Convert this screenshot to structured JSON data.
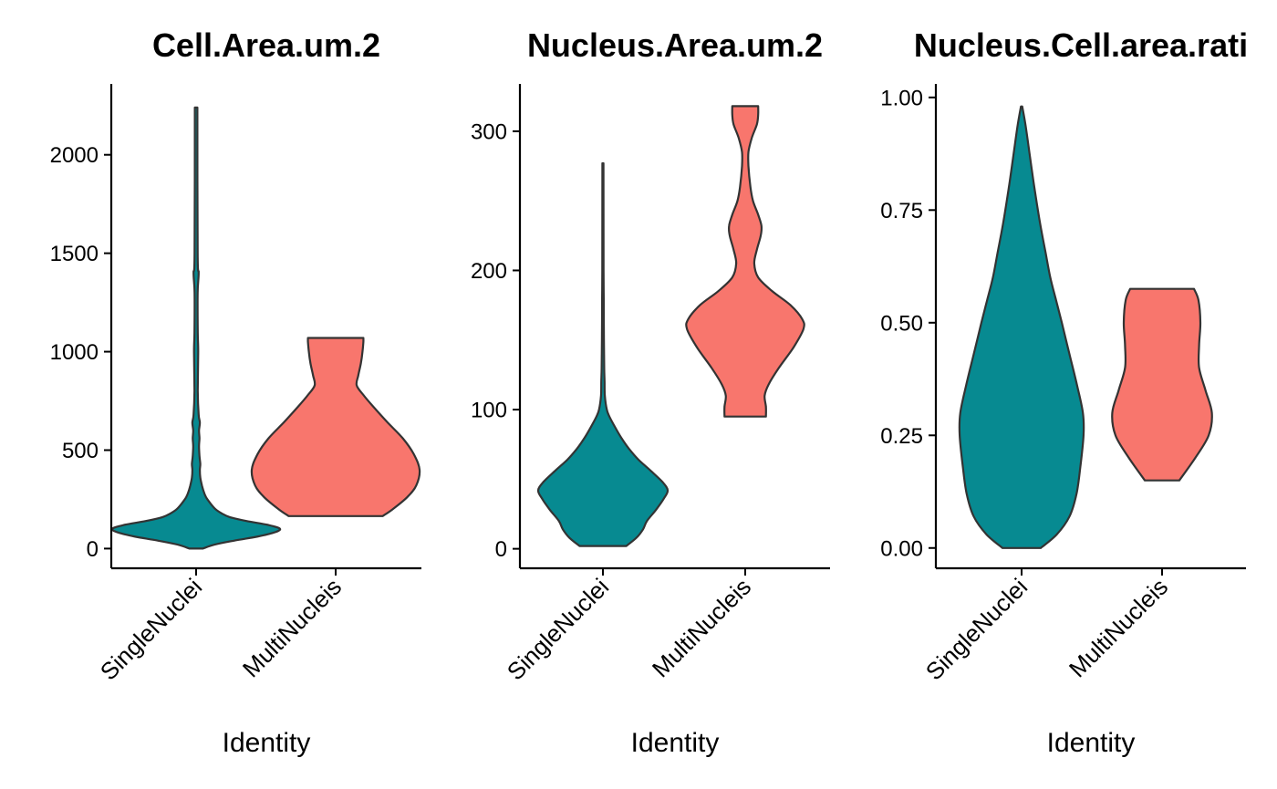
{
  "colors": {
    "SingleNuclei": "#078A91",
    "MultiNucleis": "#F8766D"
  },
  "chart_data": [
    {
      "type": "violin",
      "title": "Cell.Area.um.2",
      "xlabel": "Identity",
      "categories": [
        "SingleNuclei",
        "MultiNucleis"
      ],
      "ylim": [
        -100,
        2360
      ],
      "yticks": [
        0,
        500,
        1000,
        1500,
        2000
      ],
      "violins": [
        {
          "group": "SingleNuclei",
          "min": 0,
          "max": 2240,
          "profile": [
            [
              0,
              0.08
            ],
            [
              20,
              0.22
            ],
            [
              40,
              0.45
            ],
            [
              60,
              0.72
            ],
            [
              80,
              0.92
            ],
            [
              100,
              1.0
            ],
            [
              120,
              0.86
            ],
            [
              140,
              0.6
            ],
            [
              160,
              0.4
            ],
            [
              180,
              0.3
            ],
            [
              200,
              0.23
            ],
            [
              230,
              0.17
            ],
            [
              260,
              0.12
            ],
            [
              290,
              0.09
            ],
            [
              320,
              0.07
            ],
            [
              360,
              0.05
            ],
            [
              400,
              0.045
            ],
            [
              430,
              0.05
            ],
            [
              470,
              0.04
            ],
            [
              520,
              0.035
            ],
            [
              560,
              0.04
            ],
            [
              600,
              0.035
            ],
            [
              640,
              0.045
            ],
            [
              680,
              0.03
            ],
            [
              800,
              0.02
            ],
            [
              1000,
              0.025
            ],
            [
              1100,
              0.02
            ],
            [
              1300,
              0.018
            ],
            [
              1400,
              0.03
            ],
            [
              1500,
              0.018
            ],
            [
              2240,
              0.015
            ]
          ]
        },
        {
          "group": "MultiNucleis",
          "min": 165,
          "max": 1070,
          "profile": [
            [
              165,
              0.56
            ],
            [
              200,
              0.68
            ],
            [
              260,
              0.85
            ],
            [
              320,
              0.96
            ],
            [
              400,
              1.0
            ],
            [
              480,
              0.93
            ],
            [
              560,
              0.8
            ],
            [
              640,
              0.62
            ],
            [
              720,
              0.45
            ],
            [
              780,
              0.33
            ],
            [
              830,
              0.25
            ],
            [
              880,
              0.27
            ],
            [
              940,
              0.3
            ],
            [
              1000,
              0.32
            ],
            [
              1050,
              0.33
            ],
            [
              1070,
              0.33
            ]
          ]
        }
      ]
    },
    {
      "type": "violin",
      "title": "Nucleus.Area.um.2",
      "xlabel": "Identity",
      "categories": [
        "SingleNuclei",
        "MultiNucleis"
      ],
      "ylim": [
        -14,
        334
      ],
      "yticks": [
        0,
        100,
        200,
        300
      ],
      "violins": [
        {
          "group": "SingleNuclei",
          "min": 2,
          "max": 277,
          "profile": [
            [
              2,
              0.36
            ],
            [
              8,
              0.52
            ],
            [
              14,
              0.62
            ],
            [
              20,
              0.68
            ],
            [
              28,
              0.82
            ],
            [
              36,
              0.94
            ],
            [
              42,
              1.0
            ],
            [
              48,
              0.92
            ],
            [
              56,
              0.74
            ],
            [
              64,
              0.55
            ],
            [
              72,
              0.4
            ],
            [
              80,
              0.28
            ],
            [
              88,
              0.18
            ],
            [
              95,
              0.1
            ],
            [
              100,
              0.06
            ],
            [
              110,
              0.03
            ],
            [
              120,
              0.025
            ],
            [
              130,
              0.02
            ],
            [
              150,
              0.015
            ],
            [
              180,
              0.012
            ],
            [
              200,
              0.01
            ],
            [
              277,
              0.008
            ]
          ]
        },
        {
          "group": "MultiNucleis",
          "min": 95,
          "max": 318,
          "profile": [
            [
              95,
              0.32
            ],
            [
              102,
              0.32
            ],
            [
              110,
              0.3
            ],
            [
              118,
              0.36
            ],
            [
              130,
              0.52
            ],
            [
              145,
              0.75
            ],
            [
              158,
              0.9
            ],
            [
              165,
              0.88
            ],
            [
              175,
              0.7
            ],
            [
              185,
              0.42
            ],
            [
              195,
              0.2
            ],
            [
              205,
              0.14
            ],
            [
              215,
              0.18
            ],
            [
              225,
              0.24
            ],
            [
              232,
              0.25
            ],
            [
              240,
              0.2
            ],
            [
              250,
              0.12
            ],
            [
              260,
              0.08
            ],
            [
              275,
              0.05
            ],
            [
              285,
              0.05
            ],
            [
              295,
              0.1
            ],
            [
              305,
              0.18
            ],
            [
              312,
              0.2
            ],
            [
              318,
              0.2
            ]
          ]
        }
      ]
    },
    {
      "type": "violin",
      "title": "Nucleus.Cell.area.rati",
      "xlabel": "Identity",
      "categories": [
        "SingleNuclei",
        "MultiNucleis"
      ],
      "ylim": [
        -0.045,
        1.03
      ],
      "yticks": [
        0.0,
        0.25,
        0.5,
        0.75,
        1.0
      ],
      "tick_decimals": 2,
      "violins": [
        {
          "group": "SingleNuclei",
          "min": 0.0,
          "max": 0.98,
          "profile": [
            [
              0.0,
              0.3
            ],
            [
              0.03,
              0.55
            ],
            [
              0.07,
              0.75
            ],
            [
              0.12,
              0.86
            ],
            [
              0.18,
              0.92
            ],
            [
              0.25,
              0.97
            ],
            [
              0.3,
              0.96
            ],
            [
              0.36,
              0.87
            ],
            [
              0.43,
              0.75
            ],
            [
              0.5,
              0.63
            ],
            [
              0.55,
              0.54
            ],
            [
              0.6,
              0.45
            ],
            [
              0.66,
              0.37
            ],
            [
              0.72,
              0.29
            ],
            [
              0.8,
              0.2
            ],
            [
              0.88,
              0.12
            ],
            [
              0.94,
              0.06
            ],
            [
              0.98,
              0.01
            ]
          ]
        },
        {
          "group": "MultiNucleis",
          "min": 0.15,
          "max": 0.575,
          "profile": [
            [
              0.15,
              0.27
            ],
            [
              0.2,
              0.52
            ],
            [
              0.25,
              0.73
            ],
            [
              0.3,
              0.78
            ],
            [
              0.35,
              0.68
            ],
            [
              0.4,
              0.58
            ],
            [
              0.45,
              0.58
            ],
            [
              0.5,
              0.6
            ],
            [
              0.55,
              0.57
            ],
            [
              0.575,
              0.5
            ]
          ]
        }
      ]
    }
  ]
}
